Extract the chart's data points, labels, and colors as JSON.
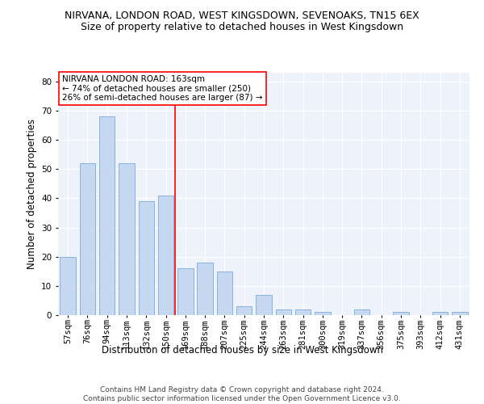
{
  "title1": "NIRVANA, LONDON ROAD, WEST KINGSDOWN, SEVENOAKS, TN15 6EX",
  "title2": "Size of property relative to detached houses in West Kingsdown",
  "xlabel": "Distribution of detached houses by size in West Kingsdown",
  "ylabel": "Number of detached properties",
  "categories": [
    "57sqm",
    "76sqm",
    "94sqm",
    "113sqm",
    "132sqm",
    "150sqm",
    "169sqm",
    "188sqm",
    "207sqm",
    "225sqm",
    "244sqm",
    "263sqm",
    "281sqm",
    "300sqm",
    "319sqm",
    "337sqm",
    "356sqm",
    "375sqm",
    "393sqm",
    "412sqm",
    "431sqm"
  ],
  "values": [
    20,
    52,
    68,
    52,
    39,
    41,
    16,
    18,
    15,
    3,
    7,
    2,
    2,
    1,
    0,
    2,
    0,
    1,
    0,
    1,
    1
  ],
  "bar_color": "#c5d8f0",
  "bar_edge_color": "#7aaadc",
  "vline_x_index": 5.45,
  "vline_color": "red",
  "annotation_text": "NIRVANA LONDON ROAD: 163sqm\n← 74% of detached houses are smaller (250)\n26% of semi-detached houses are larger (87) →",
  "annotation_box_color": "white",
  "annotation_box_edge": "red",
  "ylim": [
    0,
    83
  ],
  "yticks": [
    0,
    10,
    20,
    30,
    40,
    50,
    60,
    70,
    80
  ],
  "footer": "Contains HM Land Registry data © Crown copyright and database right 2024.\nContains public sector information licensed under the Open Government Licence v3.0.",
  "bg_color": "#eef2fb",
  "title1_fontsize": 9,
  "title2_fontsize": 9,
  "tick_fontsize": 7.5,
  "ylabel_fontsize": 8.5,
  "xlabel_fontsize": 8.5,
  "annotation_fontsize": 7.5,
  "footer_fontsize": 6.5
}
